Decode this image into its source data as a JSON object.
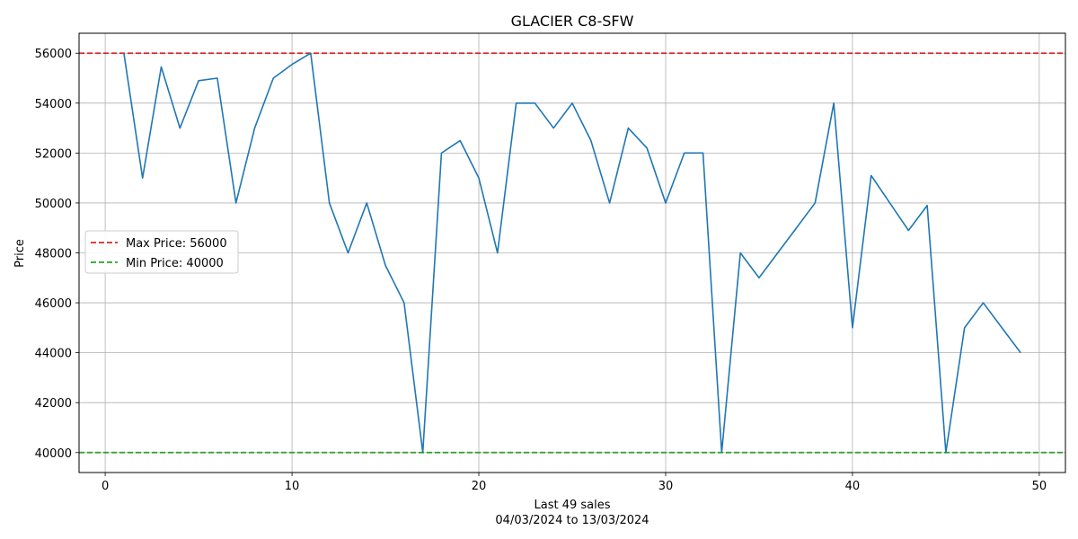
{
  "chart_data": {
    "type": "line",
    "title": "GLACIER C8-SFW",
    "xlabel": "Last 49 sales",
    "xlabel_sub": "04/03/2024 to 13/03/2024",
    "ylabel": "Price",
    "xlim": [
      -1.4,
      51.4
    ],
    "ylim": [
      39200,
      56800
    ],
    "xticks": [
      0,
      10,
      20,
      30,
      40,
      50
    ],
    "yticks": [
      40000,
      42000,
      44000,
      46000,
      48000,
      50000,
      52000,
      54000,
      56000
    ],
    "grid": true,
    "legend_position": "center-left",
    "series": [
      {
        "color": "#1f77b4",
        "x": [
          1,
          2,
          3,
          4,
          5,
          6,
          7,
          8,
          9,
          10,
          11,
          12,
          13,
          14,
          15,
          16,
          17,
          18,
          19,
          20,
          21,
          22,
          23,
          24,
          25,
          26,
          27,
          28,
          29,
          30,
          31,
          32,
          33,
          34,
          35,
          36,
          37,
          38,
          39,
          40,
          41,
          42,
          43,
          44,
          45,
          46,
          47,
          48,
          49
        ],
        "y": [
          56000,
          51000,
          55450,
          53000,
          54900,
          55000,
          50000,
          53000,
          55000,
          55550,
          56000,
          50000,
          48000,
          50000,
          47500,
          46000,
          40000,
          52000,
          52500,
          51000,
          48000,
          54000,
          54000,
          53000,
          54000,
          52500,
          50000,
          53000,
          52200,
          50000,
          52000,
          52000,
          40000,
          48000,
          47000,
          48000,
          49000,
          50000,
          54000,
          45000,
          51100,
          50000,
          48900,
          49900,
          40000,
          45000,
          46000,
          45000,
          44000
        ]
      }
    ],
    "reference_lines": [
      {
        "name": "Max Price: 56000",
        "value": 56000,
        "color": "#d62728"
      },
      {
        "name": "Min Price: 40000",
        "value": 40000,
        "color": "#2ca02c"
      }
    ]
  }
}
